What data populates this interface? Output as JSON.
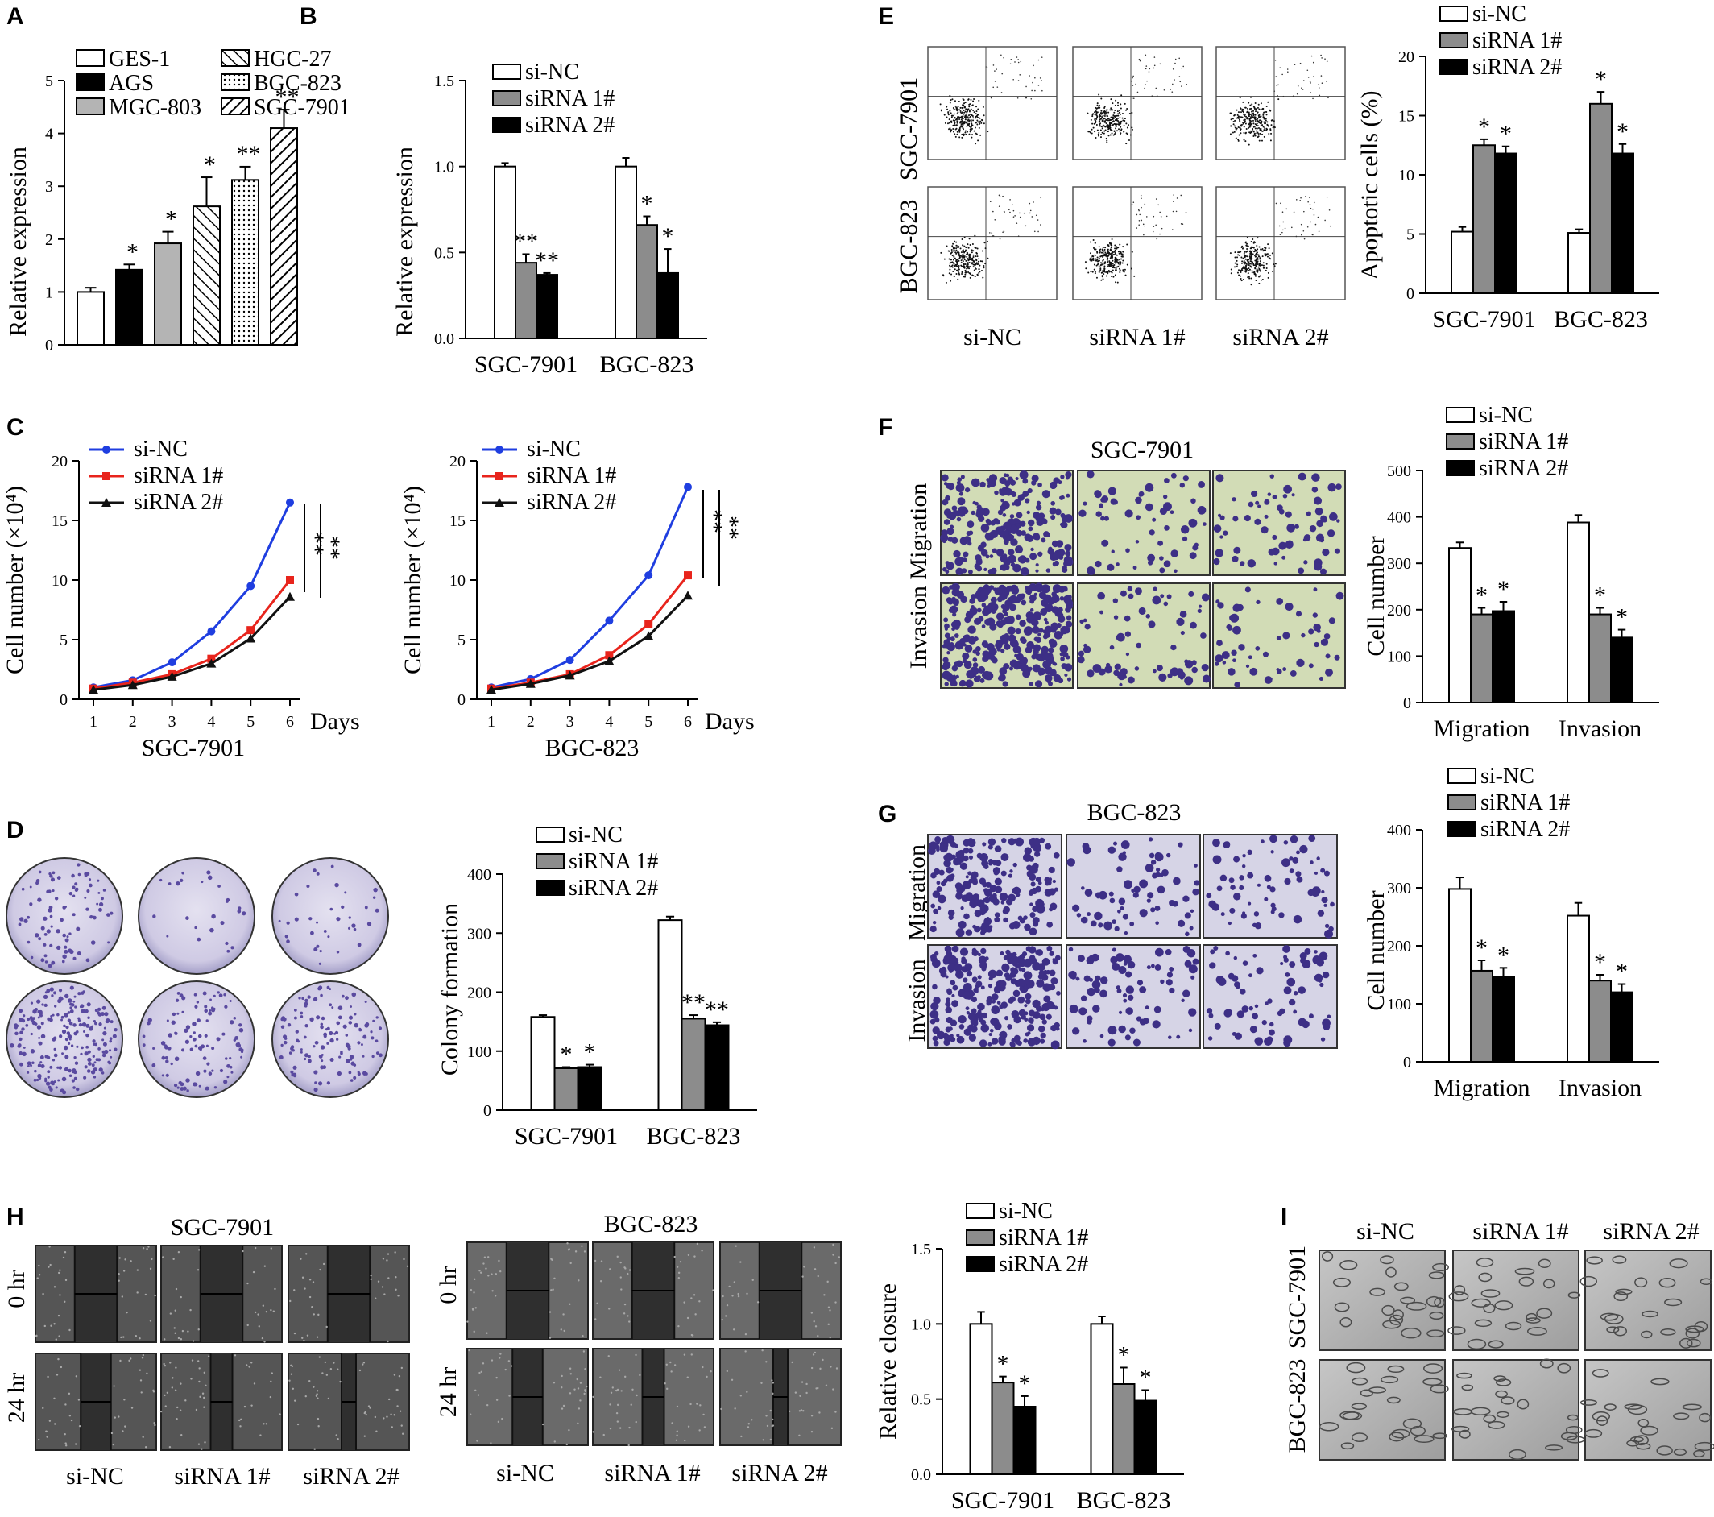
{
  "panels": {
    "A": {
      "label": "A",
      "legend": [
        "GES-1",
        "AGS",
        "MGC-803",
        "HGC-27",
        "BGC-823",
        "SGC-7901"
      ],
      "ylabel": "Relative expression",
      "yticks": [
        "0",
        "1",
        "2",
        "3",
        "4",
        "5"
      ]
    },
    "B": {
      "label": "B",
      "legend": [
        "si-NC",
        "siRNA 1#",
        "siRNA 2#"
      ],
      "ylabel": "Relative expression",
      "yticks": [
        "0.0",
        "0.5",
        "1.0",
        "1.5"
      ],
      "categories": [
        "SGC-7901",
        "BGC-823"
      ]
    },
    "C": {
      "label": "C",
      "legend": [
        "si-NC",
        "siRNA 1#",
        "siRNA 2#"
      ],
      "ylabel": "Cell number (×10⁴)",
      "yticks": [
        "0",
        "5",
        "10",
        "15",
        "20"
      ],
      "xticks": [
        "1",
        "2",
        "3",
        "4",
        "5",
        "6"
      ],
      "xunit": "Days",
      "left_title": "SGC-7901",
      "right_title": "BGC-823",
      "sig": "**"
    },
    "D": {
      "label": "D",
      "legend": [
        "si-NC",
        "siRNA 1#",
        "siRNA 2#"
      ],
      "ylabel": "Colony formation",
      "yticks": [
        "0",
        "100",
        "200",
        "300",
        "400"
      ],
      "categories": [
        "SGC-7901",
        "BGC-823"
      ]
    },
    "E": {
      "label": "E",
      "legend": [
        "si-NC",
        "siRNA 1#",
        "siRNA 2#"
      ],
      "ylabel": "Apoptotic cells (%)",
      "yticks": [
        "0",
        "5",
        "10",
        "15",
        "20"
      ],
      "categories": [
        "SGC-7901",
        "BGC-823"
      ],
      "row_labels": [
        "SGC-7901",
        "BGC-823"
      ],
      "col_labels": [
        "si-NC",
        "siRNA 1#",
        "siRNA 2#"
      ]
    },
    "F": {
      "label": "F",
      "image_title": "SGC-7901",
      "row_label": "Invasion Migration",
      "legend": [
        "si-NC",
        "siRNA 1#",
        "siRNA 2#"
      ],
      "ylabel": "Cell number",
      "yticks": [
        "0",
        "100",
        "200",
        "300",
        "400",
        "500"
      ],
      "categories": [
        "Migration",
        "Invasion"
      ]
    },
    "G": {
      "label": "G",
      "image_title": "BGC-823",
      "row_labels": [
        "Migration",
        "Invasion"
      ],
      "legend": [
        "si-NC",
        "siRNA 1#",
        "siRNA 2#"
      ],
      "ylabel": "Cell number",
      "yticks": [
        "0",
        "100",
        "200",
        "300",
        "400"
      ],
      "categories": [
        "Migration",
        "Invasion"
      ]
    },
    "H": {
      "label": "H",
      "titles": [
        "SGC-7901",
        "BGC-823"
      ],
      "row_labels": [
        "0 hr",
        "24 hr"
      ],
      "col_labels": [
        "si-NC",
        "siRNA 1#",
        "siRNA 2#"
      ],
      "legend": [
        "si-NC",
        "siRNA 1#",
        "siRNA 2#"
      ],
      "ylabel": "Relative closure",
      "yticks": [
        "0.0",
        "0.5",
        "1.0",
        "1.5"
      ],
      "categories": [
        "SGC-7901",
        "BGC-823"
      ]
    },
    "I": {
      "label": "I",
      "col_labels": [
        "si-NC",
        "siRNA 1#",
        "siRNA 2#"
      ],
      "row_labels": [
        "SGC-7901",
        "BGC-823"
      ]
    }
  },
  "chart_data": [
    {
      "panel": "A",
      "type": "bar",
      "categories": [
        "GES-1",
        "AGS",
        "MGC-803",
        "HGC-27",
        "BGC-823",
        "SGC-7901"
      ],
      "values": [
        1.0,
        1.42,
        1.92,
        2.62,
        3.12,
        4.1
      ],
      "errors": [
        0.08,
        0.1,
        0.22,
        0.55,
        0.25,
        0.35
      ],
      "significance": [
        "",
        "*",
        "*",
        "*",
        "**",
        "**"
      ],
      "ylabel": "Relative expression",
      "ylim": [
        0,
        5
      ]
    },
    {
      "panel": "B",
      "type": "bar",
      "categories": [
        "SGC-7901",
        "BGC-823"
      ],
      "series": [
        {
          "name": "si-NC",
          "values": [
            1.0,
            1.0
          ],
          "errors": [
            0.02,
            0.05
          ],
          "significance": [
            "",
            ""
          ]
        },
        {
          "name": "siRNA 1#",
          "values": [
            0.44,
            0.66
          ],
          "errors": [
            0.05,
            0.05
          ],
          "significance": [
            "**",
            "*"
          ]
        },
        {
          "name": "siRNA 2#",
          "values": [
            0.37,
            0.38
          ],
          "errors": [
            0.01,
            0.14
          ],
          "significance": [
            "**",
            "*"
          ]
        }
      ],
      "ylabel": "Relative expression",
      "ylim": [
        0,
        1.5
      ]
    },
    {
      "panel": "C-SGC-7901",
      "type": "line",
      "x": [
        1,
        2,
        3,
        4,
        5,
        6
      ],
      "series": [
        {
          "name": "si-NC",
          "values": [
            1.0,
            1.6,
            3.1,
            5.7,
            9.5,
            16.5
          ],
          "color": "#1f3ee0"
        },
        {
          "name": "siRNA 1#",
          "values": [
            0.9,
            1.4,
            2.1,
            3.4,
            5.8,
            10.0
          ],
          "color": "#e8241c"
        },
        {
          "name": "siRNA 2#",
          "values": [
            0.8,
            1.2,
            1.9,
            3.0,
            5.1,
            8.6
          ],
          "color": "#111111"
        }
      ],
      "title": "SGC-7901",
      "ylabel": "Cell number (×10⁴)",
      "xlabel": "Days",
      "ylim": [
        0,
        20
      ]
    },
    {
      "panel": "C-BGC-823",
      "type": "line",
      "x": [
        1,
        2,
        3,
        4,
        5,
        6
      ],
      "series": [
        {
          "name": "si-NC",
          "values": [
            1.0,
            1.7,
            3.3,
            6.6,
            10.4,
            17.8
          ],
          "color": "#1f3ee0"
        },
        {
          "name": "siRNA 1#",
          "values": [
            0.9,
            1.4,
            2.1,
            3.7,
            6.3,
            10.4
          ],
          "color": "#e8241c"
        },
        {
          "name": "siRNA 2#",
          "values": [
            0.8,
            1.3,
            2.0,
            3.2,
            5.3,
            8.7
          ],
          "color": "#111111"
        }
      ],
      "title": "BGC-823",
      "ylabel": "Cell number (×10⁴)",
      "xlabel": "Days",
      "ylim": [
        0,
        20
      ]
    },
    {
      "panel": "D",
      "type": "bar",
      "categories": [
        "SGC-7901",
        "BGC-823"
      ],
      "series": [
        {
          "name": "si-NC",
          "values": [
            158,
            322
          ],
          "errors": [
            3,
            6
          ],
          "significance": [
            "",
            ""
          ]
        },
        {
          "name": "siRNA 1#",
          "values": [
            71,
            155
          ],
          "errors": [
            2,
            6
          ],
          "significance": [
            "*",
            "**"
          ]
        },
        {
          "name": "siRNA 2#",
          "values": [
            73,
            144
          ],
          "errors": [
            4,
            5
          ],
          "significance": [
            "*",
            "**"
          ]
        }
      ],
      "ylabel": "Colony formation",
      "ylim": [
        0,
        400
      ]
    },
    {
      "panel": "E",
      "type": "bar",
      "categories": [
        "SGC-7901",
        "BGC-823"
      ],
      "series": [
        {
          "name": "si-NC",
          "values": [
            5.2,
            5.1
          ],
          "errors": [
            0.4,
            0.3
          ],
          "significance": [
            "",
            ""
          ]
        },
        {
          "name": "siRNA 1#",
          "values": [
            12.5,
            16.0
          ],
          "errors": [
            0.5,
            1.0
          ],
          "significance": [
            "*",
            "*"
          ]
        },
        {
          "name": "siRNA 2#",
          "values": [
            11.8,
            11.8
          ],
          "errors": [
            0.6,
            0.8
          ],
          "significance": [
            "*",
            "*"
          ]
        }
      ],
      "ylabel": "Apoptotic cells (%)",
      "ylim": [
        0,
        20
      ]
    },
    {
      "panel": "F",
      "type": "bar",
      "categories": [
        "Migration",
        "Invasion"
      ],
      "series": [
        {
          "name": "si-NC",
          "values": [
            333,
            388
          ],
          "errors": [
            12,
            16
          ],
          "significance": [
            "",
            ""
          ]
        },
        {
          "name": "siRNA 1#",
          "values": [
            190,
            190
          ],
          "errors": [
            14,
            14
          ],
          "significance": [
            "*",
            "*"
          ]
        },
        {
          "name": "siRNA 2#",
          "values": [
            197,
            140
          ],
          "errors": [
            20,
            17
          ],
          "significance": [
            "*",
            "*"
          ]
        }
      ],
      "ylabel": "Cell number",
      "ylim": [
        0,
        500
      ]
    },
    {
      "panel": "G",
      "type": "bar",
      "categories": [
        "Migration",
        "Invasion"
      ],
      "series": [
        {
          "name": "si-NC",
          "values": [
            298,
            252
          ],
          "errors": [
            20,
            22
          ],
          "significance": [
            "",
            ""
          ]
        },
        {
          "name": "siRNA 1#",
          "values": [
            157,
            140
          ],
          "errors": [
            18,
            10
          ],
          "significance": [
            "*",
            "*"
          ]
        },
        {
          "name": "siRNA 2#",
          "values": [
            147,
            120
          ],
          "errors": [
            15,
            14
          ],
          "significance": [
            "*",
            "*"
          ]
        }
      ],
      "ylabel": "Cell number",
      "ylim": [
        0,
        400
      ]
    },
    {
      "panel": "H",
      "type": "bar",
      "categories": [
        "SGC-7901",
        "BGC-823"
      ],
      "series": [
        {
          "name": "si-NC",
          "values": [
            1.0,
            1.0
          ],
          "errors": [
            0.08,
            0.05
          ],
          "significance": [
            "",
            ""
          ]
        },
        {
          "name": "siRNA 1#",
          "values": [
            0.61,
            0.6
          ],
          "errors": [
            0.04,
            0.11
          ],
          "significance": [
            "*",
            "*"
          ]
        },
        {
          "name": "siRNA 2#",
          "values": [
            0.45,
            0.49
          ],
          "errors": [
            0.07,
            0.07
          ],
          "significance": [
            "*",
            "*"
          ]
        }
      ],
      "ylabel": "Relative closure",
      "ylim": [
        0,
        1.5
      ]
    }
  ],
  "colors": {
    "white_bar": "#ffffff",
    "grey_bar": "#8c8c8c",
    "black_bar": "#000000",
    "light_grey_bar": "#b4b4b4",
    "stain_purple": "#5a4aa0",
    "dish_bg": "#d8d4ea",
    "micro_bg": "#b6b6b6"
  }
}
